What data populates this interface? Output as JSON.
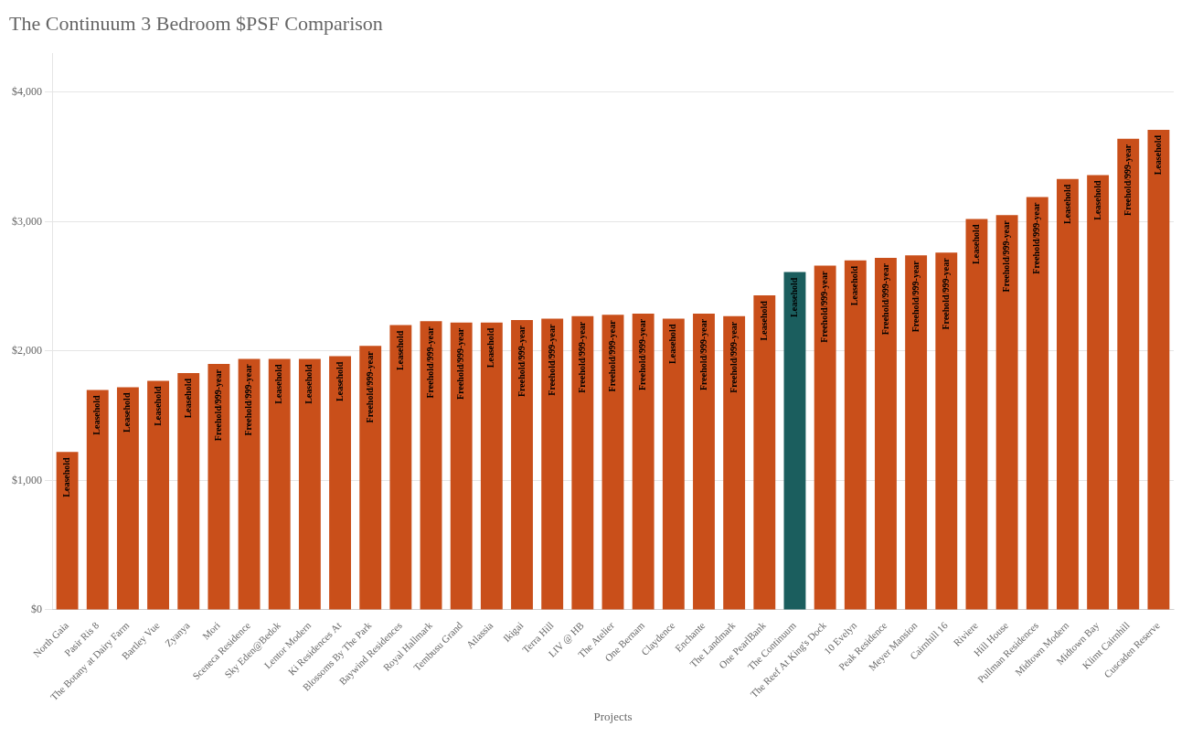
{
  "chart_data": {
    "type": "bar",
    "title": "The Continuum 3 Bedroom $PSF Comparison",
    "xlabel": "Projects",
    "categories": [
      "North Gaia",
      "Pasir Ris 8",
      "The Botany at Dairy Farm",
      "Bartley Vue",
      "Zyanya",
      "Mori",
      "Sceneca Residence",
      "Sky Eden@Bedok",
      "Lentor Modern",
      "Ki Residences At",
      "Blossoms By The Park",
      "Baywind Residences",
      "Royal Hallmark",
      "Tembusu Grand",
      "Atlassia",
      "Ikigai",
      "Terra Hill",
      "LIV @ HB",
      "The Atelier",
      "One Bernam",
      "Claydence",
      "Enchante",
      "The Landmark",
      "One PearlBank",
      "The Continuum",
      "The Reef At King's Dock",
      "10 Evelyn",
      "Peak Residence",
      "Meyer Mansion",
      "Cairnhill 16",
      "Riviere",
      "Hill House",
      "Pullman Residences",
      "Midtown Modern",
      "Midtown Bay",
      "Klimt Cairnhill",
      "Cuscaden Reserve"
    ],
    "values": [
      1220,
      1700,
      1720,
      1770,
      1830,
      1900,
      1940,
      1940,
      1940,
      1960,
      2040,
      2200,
      2230,
      2220,
      2220,
      2240,
      2250,
      2270,
      2280,
      2290,
      2250,
      2290,
      2270,
      2430,
      2610,
      2660,
      2700,
      2720,
      2740,
      2760,
      3020,
      3050,
      3190,
      3330,
      3360,
      3640,
      3710
    ],
    "annotations": [
      "Leasehold",
      "Leasehold",
      "Leasehold",
      "Leasehold",
      "Leasehold",
      "Freehold/999-year",
      "Freehold/999-year",
      "Leasehold",
      "Leasehold",
      "Leasehold",
      "Freehold/999-year",
      "Leasehold",
      "Freehold/999-year",
      "Freehold/999-year",
      "Leasehold",
      "Freehold/999-year",
      "Freehold/999-year",
      "Freehold/999-year",
      "Freehold/999-year",
      "Freehold/999-year",
      "Leasehold",
      "Freehold/999-year",
      "Freehold/999-year",
      "Leasehold",
      "Leasehold",
      "Freehold/999-year",
      "Leasehold",
      "Freehold/999-year",
      "Freehold/999-year",
      "Freehold/999-year",
      "Leasehold",
      "Freehold/999-year",
      "Freehold/999-year",
      "Leasehold",
      "Leasehold",
      "Freehold/999-year",
      "Leasehold"
    ],
    "colors": [
      "#c94f1a",
      "#c94f1a",
      "#c94f1a",
      "#c94f1a",
      "#c94f1a",
      "#c94f1a",
      "#c94f1a",
      "#c94f1a",
      "#c94f1a",
      "#c94f1a",
      "#c94f1a",
      "#c94f1a",
      "#c94f1a",
      "#c94f1a",
      "#c94f1a",
      "#c94f1a",
      "#c94f1a",
      "#c94f1a",
      "#c94f1a",
      "#c94f1a",
      "#c94f1a",
      "#c94f1a",
      "#c94f1a",
      "#c94f1a",
      "#1b5e5e",
      "#c94f1a",
      "#c94f1a",
      "#c94f1a",
      "#c94f1a",
      "#c94f1a",
      "#c94f1a",
      "#c94f1a",
      "#c94f1a",
      "#c94f1a",
      "#c94f1a",
      "#c94f1a",
      "#c94f1a"
    ],
    "ylim": [
      0,
      4300
    ],
    "yticks": [
      {
        "value": 0,
        "label": "$0"
      },
      {
        "value": 1000,
        "label": "$1,000"
      },
      {
        "value": 2000,
        "label": "$2,000"
      },
      {
        "value": 3000,
        "label": "$3,000"
      },
      {
        "value": 4000,
        "label": "$4,000"
      }
    ],
    "grid": true
  }
}
